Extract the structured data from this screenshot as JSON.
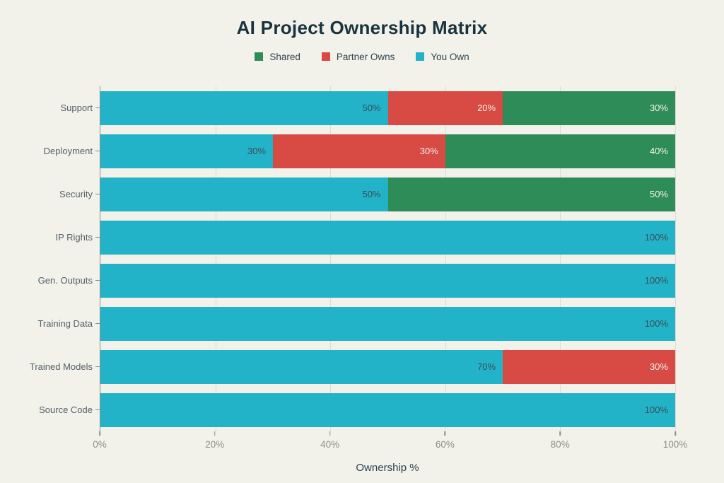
{
  "title": "AI Project Ownership Matrix",
  "xlabel": "Ownership %",
  "colors": {
    "background": "#f2f1ea",
    "title_text": "#18333d",
    "category_text": "#54616a",
    "tick_text": "#8f9089",
    "axis_line": "#8b8e87",
    "gridline": "#dedcd2"
  },
  "legend": [
    {
      "label": "Shared",
      "color": "#2e8c58"
    },
    {
      "label": "Partner Owns",
      "color": "#d84a44"
    },
    {
      "label": "You Own",
      "color": "#23b3c8"
    }
  ],
  "chart_data": {
    "type": "bar",
    "orientation": "horizontal",
    "stacked": true,
    "title": "AI Project Ownership Matrix",
    "xlabel": "Ownership %",
    "ylabel": "",
    "xlim": [
      0,
      100
    ],
    "xticks": [
      "0%",
      "20%",
      "40%",
      "60%",
      "80%",
      "100%"
    ],
    "xtick_values": [
      0,
      20,
      40,
      60,
      80,
      100
    ],
    "grid": true,
    "legend_position": "top",
    "categories": [
      "Support",
      "Deployment",
      "Security",
      "IP Rights",
      "Gen. Outputs",
      "Training Data",
      "Trained Models",
      "Source Code"
    ],
    "series": [
      {
        "name": "You Own",
        "color": "#23b3c8",
        "label_color": "#3a4d55",
        "values": [
          50,
          30,
          50,
          100,
          100,
          100,
          70,
          100
        ]
      },
      {
        "name": "Partner Owns",
        "color": "#d84a44",
        "label_color": "#f5f3ec",
        "values": [
          20,
          30,
          0,
          0,
          0,
          0,
          30,
          0
        ]
      },
      {
        "name": "Shared",
        "color": "#2e8c58",
        "label_color": "#f5f3ec",
        "values": [
          30,
          40,
          50,
          0,
          0,
          0,
          0,
          0
        ]
      }
    ],
    "bar_label_format": "{value}%"
  }
}
